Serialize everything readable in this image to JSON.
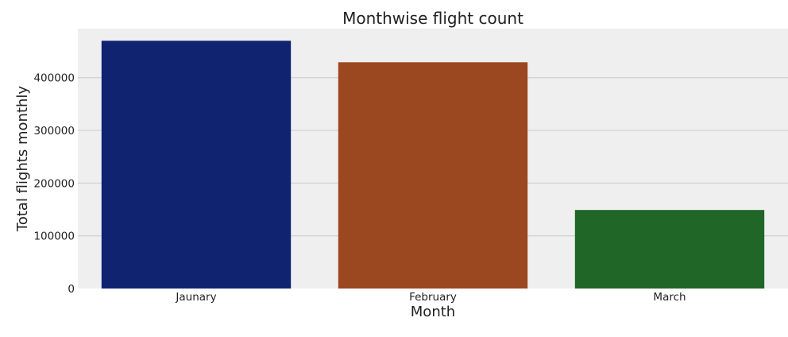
{
  "chart_data": {
    "type": "bar",
    "title": "Monthwise flight count",
    "xlabel": "Month",
    "ylabel": "Total flights monthly",
    "categories": [
      "Jaunary",
      "February",
      "March"
    ],
    "values": [
      469968,
      429191,
      148985
    ],
    "colors": [
      "#0f2370",
      "#9b4720",
      "#1f6627"
    ],
    "ylim": [
      0,
      493000
    ],
    "yticks": [
      0,
      100000,
      200000,
      300000,
      400000
    ],
    "ytick_labels": [
      "0",
      "100000",
      "200000",
      "300000",
      "400000"
    ],
    "grid": "horizontal",
    "legend": "none",
    "plot_background": "#efefef",
    "grid_color": "#d3d3d3"
  }
}
